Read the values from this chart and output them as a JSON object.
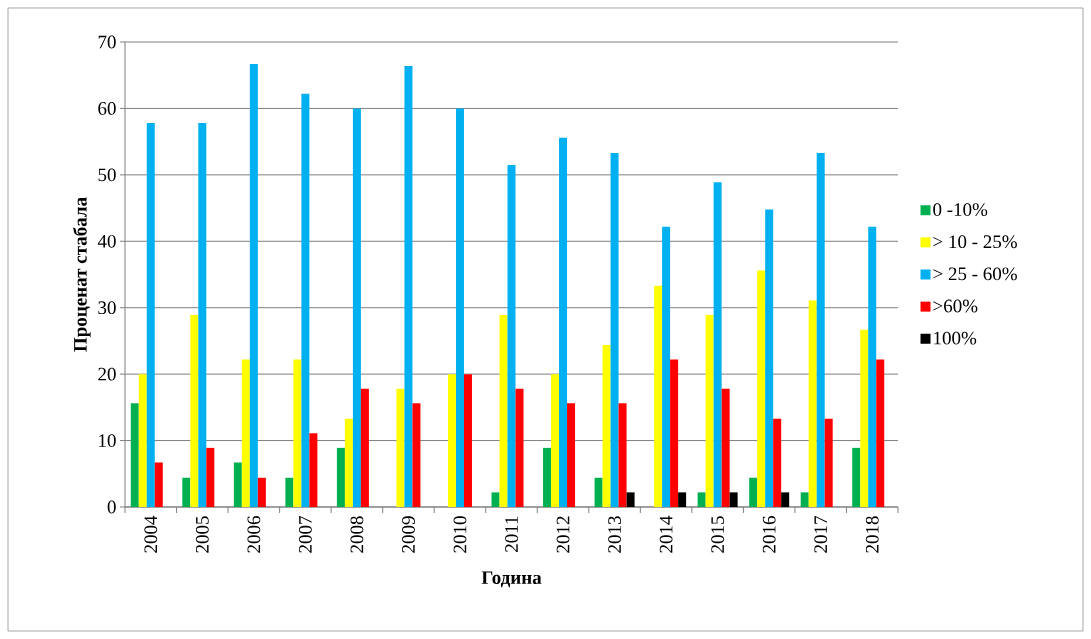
{
  "chart_data": {
    "type": "bar",
    "xlabel": "Година",
    "ylabel": "Проценат стабала",
    "categories": [
      "2004",
      "2005",
      "2006",
      "2007",
      "2008",
      "2009",
      "2010",
      "2011",
      "2012",
      "2013",
      "2014",
      "2015",
      "2016",
      "2017",
      "2018"
    ],
    "series": [
      {
        "name": "0 -10%",
        "color": "#00b050",
        "values": [
          15.6,
          4.4,
          6.7,
          4.4,
          8.9,
          null,
          null,
          2.2,
          8.9,
          4.4,
          null,
          2.2,
          4.4,
          2.2,
          8.9
        ]
      },
      {
        "name": "> 10 - 25%",
        "color": "#ffff00",
        "values": [
          20,
          28.9,
          22.2,
          22.2,
          13.3,
          17.8,
          20,
          28.9,
          20,
          24.4,
          33.3,
          28.9,
          35.6,
          31.1,
          26.7
        ]
      },
      {
        "name": "> 25 - 60%",
        "color": "#00b0f0",
        "values": [
          57.8,
          57.8,
          66.7,
          62.2,
          60,
          66.4,
          60,
          51.5,
          55.6,
          53.3,
          42.2,
          48.9,
          44.8,
          53.3,
          42.2
        ]
      },
      {
        "name": ">60%",
        "color": "#ff0000",
        "values": [
          6.7,
          8.9,
          4.4,
          11.1,
          17.8,
          15.6,
          20,
          17.8,
          15.6,
          15.6,
          22.2,
          17.8,
          13.3,
          13.3,
          22.2
        ]
      },
      {
        "name": "100%",
        "color": "#000000",
        "values": [
          null,
          null,
          null,
          null,
          null,
          null,
          null,
          null,
          null,
          2.2,
          2.2,
          2.2,
          2.2,
          null,
          null
        ]
      }
    ],
    "ylim": [
      0,
      70
    ],
    "yticks": [
      0,
      10,
      20,
      30,
      40,
      50,
      60,
      70
    ],
    "grid": "y",
    "legend": "right"
  }
}
